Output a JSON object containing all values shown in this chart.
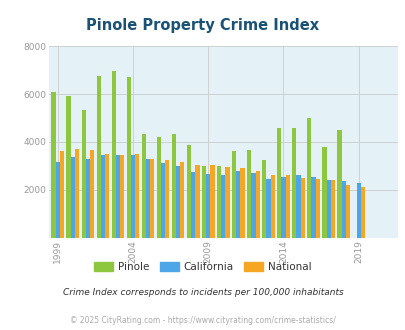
{
  "title": "Pinole Property Crime Index",
  "subtitle": "Crime Index corresponds to incidents per 100,000 inhabitants",
  "footer": "© 2025 CityRating.com - https://www.cityrating.com/crime-statistics/",
  "years": [
    1999,
    2000,
    2001,
    2002,
    2003,
    2004,
    2005,
    2006,
    2007,
    2008,
    2009,
    2010,
    2011,
    2012,
    2013,
    2014,
    2015,
    2016,
    2017,
    2018,
    2019,
    2020,
    2021
  ],
  "pinole": [
    6100,
    5900,
    5350,
    6750,
    6950,
    6700,
    4350,
    4200,
    4350,
    3850,
    3000,
    3000,
    3600,
    3650,
    3250,
    4600,
    4600,
    5000,
    3800,
    4500,
    0,
    0,
    0
  ],
  "california": [
    3150,
    3350,
    3300,
    3450,
    3450,
    3450,
    3300,
    3100,
    3000,
    2750,
    2650,
    2600,
    2800,
    2700,
    2450,
    2550,
    2600,
    2550,
    2400,
    2350,
    2300,
    0,
    0
  ],
  "national": [
    3600,
    3700,
    3650,
    3500,
    3450,
    3500,
    3300,
    3250,
    3150,
    3050,
    3050,
    2950,
    2900,
    2800,
    2600,
    2600,
    2500,
    2450,
    2400,
    2200,
    2100,
    0,
    0
  ],
  "pinole_color": "#8dc63f",
  "california_color": "#4da6e8",
  "national_color": "#f5a623",
  "bg_color": "#e4f2f7",
  "title_color": "#1a5276",
  "ylim": [
    0,
    8000
  ],
  "yticks": [
    0,
    2000,
    4000,
    6000,
    8000
  ],
  "xticks": [
    1999,
    2004,
    2009,
    2014,
    2019
  ],
  "tick_color": "#999999",
  "grid_color": "#cccccc",
  "subtitle_color": "#333333",
  "footer_color": "#aaaaaa"
}
